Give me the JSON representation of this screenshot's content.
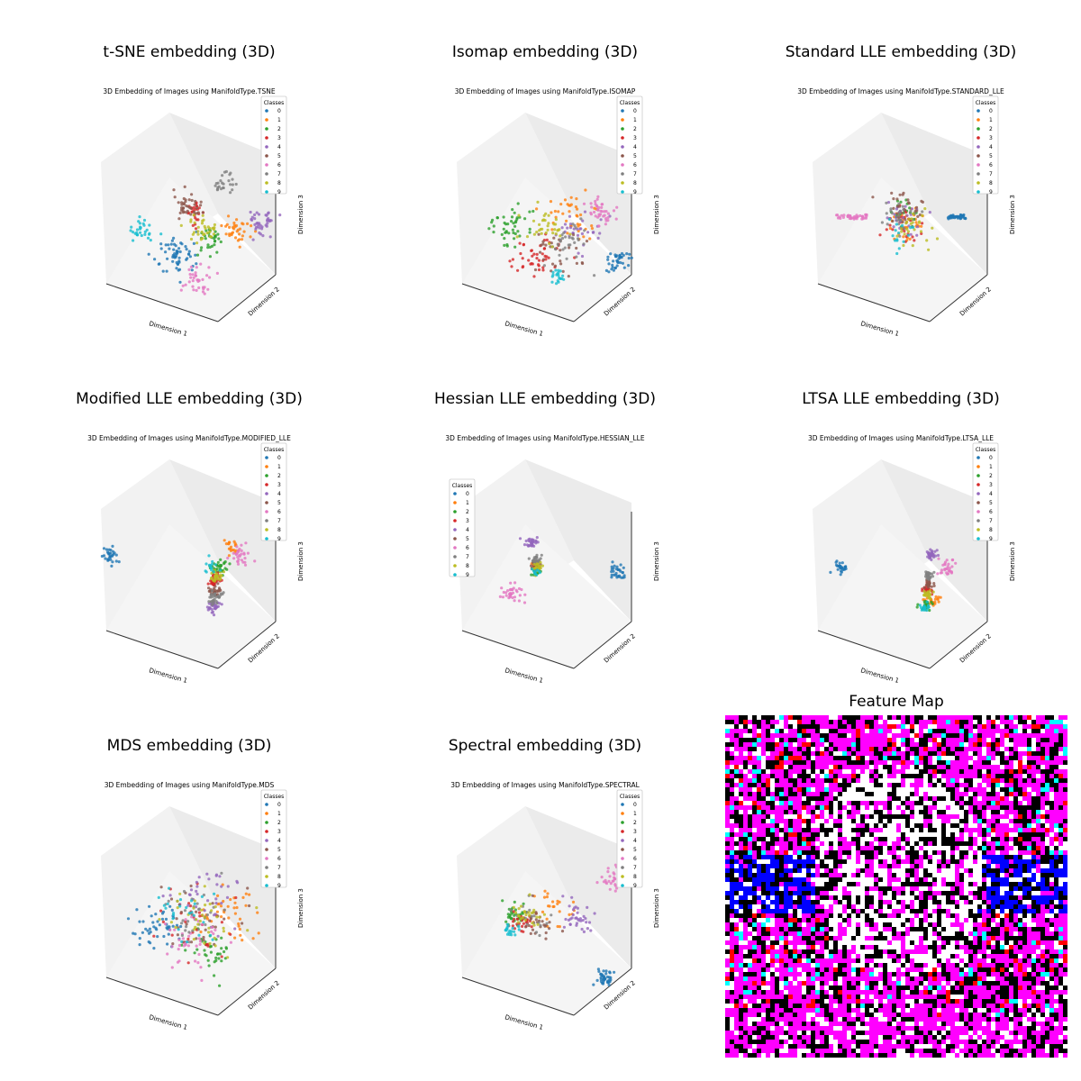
{
  "colors": {
    "0": "#1f77b4",
    "1": "#ff7f0e",
    "2": "#2ca02c",
    "3": "#d62728",
    "4": "#9467bd",
    "5": "#8c564b",
    "6": "#e377c2",
    "7": "#7f7f7f",
    "8": "#bcbd22",
    "9": "#17becf"
  },
  "legend_title": "Classes",
  "classes": [
    "0",
    "1",
    "2",
    "3",
    "4",
    "5",
    "6",
    "7",
    "8",
    "9"
  ],
  "axis_labels": {
    "x": "Dimension 1",
    "y": "Dimension 2",
    "z": "Dimension 3"
  },
  "chart_data": [
    {
      "type": "scatter",
      "title": "t-SNE embedding (3D)",
      "subtitle": "3D Embedding of Images using ManifoldType.TSNE",
      "legend_side": "right",
      "clusters": {
        "0": {
          "x": -0.15,
          "y": 0.1,
          "z": -0.35,
          "spread": 0.12,
          "n": 60
        },
        "1": {
          "x": 0.55,
          "y": 0.0,
          "z": -0.08,
          "spread": 0.09,
          "n": 35
        },
        "2": {
          "x": 0.25,
          "y": 0.0,
          "z": -0.2,
          "spread": 0.08,
          "n": 30
        },
        "3": {
          "x": 0.05,
          "y": 0.2,
          "z": 0.15,
          "spread": 0.07,
          "n": 25
        },
        "4": {
          "x": 0.85,
          "y": 0.0,
          "z": 0.02,
          "spread": 0.08,
          "n": 40
        },
        "5": {
          "x": -0.05,
          "y": 0.1,
          "z": 0.2,
          "spread": 0.09,
          "n": 40
        },
        "6": {
          "x": 0.1,
          "y": 0.0,
          "z": -0.65,
          "spread": 0.08,
          "n": 35
        },
        "7": {
          "x": 0.4,
          "y": 0.3,
          "z": 0.5,
          "spread": 0.07,
          "n": 25
        },
        "8": {
          "x": 0.15,
          "y": 0.1,
          "z": -0.05,
          "spread": 0.09,
          "n": 35
        },
        "9": {
          "x": -0.55,
          "y": 0.1,
          "z": -0.05,
          "spread": 0.07,
          "n": 30
        }
      }
    },
    {
      "type": "scatter",
      "title": "Isomap embedding (3D)",
      "subtitle": "3D Embedding of Images using ManifoldType.ISOMAP",
      "legend_side": "right",
      "clusters": {
        "0": {
          "x": 0.85,
          "y": 0.0,
          "z": -0.4,
          "spread": 0.08,
          "n": 40
        },
        "1": {
          "x": 0.3,
          "y": 0.0,
          "z": 0.1,
          "spread": 0.15,
          "n": 40
        },
        "2": {
          "x": -0.35,
          "y": 0.0,
          "z": 0.0,
          "spread": 0.14,
          "n": 45
        },
        "3": {
          "x": -0.1,
          "y": 0.0,
          "z": -0.35,
          "spread": 0.14,
          "n": 45
        },
        "4": {
          "x": 0.4,
          "y": 0.0,
          "z": -0.1,
          "spread": 0.15,
          "n": 30
        },
        "5": {
          "x": 0.15,
          "y": 0.0,
          "z": -0.3,
          "spread": 0.15,
          "n": 30
        },
        "6": {
          "x": 0.65,
          "y": 0.0,
          "z": 0.15,
          "spread": 0.09,
          "n": 40
        },
        "7": {
          "x": 0.3,
          "y": 0.0,
          "z": -0.2,
          "spread": 0.18,
          "n": 30
        },
        "8": {
          "x": 0.0,
          "y": 0.0,
          "z": 0.0,
          "spread": 0.12,
          "n": 35
        },
        "9": {
          "x": 0.15,
          "y": 0.0,
          "z": -0.6,
          "spread": 0.05,
          "n": 20
        }
      }
    },
    {
      "type": "scatter",
      "title": "Standard LLE embedding (3D)",
      "subtitle": "3D Embedding of Images using ManifoldType.STANDARD_LLE",
      "legend_side": "right",
      "clusters": {
        "0": {
          "x": 0.55,
          "y": 0.0,
          "z": 0.1,
          "spread": 0.02,
          "n": 45,
          "streak": [
            0.75,
            0.0
          ]
        },
        "1": {
          "x": 0.1,
          "y": 0.0,
          "z": 0.05,
          "spread": 0.1,
          "n": 30
        },
        "2": {
          "x": 0.05,
          "y": 0.0,
          "z": 0.15,
          "spread": 0.08,
          "n": 20
        },
        "3": {
          "x": 0.05,
          "y": 0.0,
          "z": 0.0,
          "spread": 0.1,
          "n": 25
        },
        "4": {
          "x": 0.0,
          "y": 0.0,
          "z": 0.1,
          "spread": 0.1,
          "n": 25
        },
        "5": {
          "x": 0.05,
          "y": 0.0,
          "z": 0.2,
          "spread": 0.12,
          "n": 30
        },
        "6": {
          "x": -0.4,
          "y": 0.0,
          "z": 0.1,
          "spread": 0.02,
          "n": 40,
          "streak": [
            -0.75,
            0.0
          ]
        },
        "7": {
          "x": 0.0,
          "y": 0.0,
          "z": 0.05,
          "spread": 0.15,
          "n": 25
        },
        "8": {
          "x": 0.1,
          "y": 0.0,
          "z": -0.05,
          "spread": 0.12,
          "n": 25
        },
        "9": {
          "x": -0.05,
          "y": 0.0,
          "z": -0.15,
          "spread": 0.1,
          "n": 15
        }
      }
    },
    {
      "type": "scatter",
      "title": "Modified LLE embedding (3D)",
      "subtitle": "3D Embedding of Images using ManifoldType.MODIFIED_LLE",
      "legend_side": "right",
      "clusters": {
        "0": {
          "x": -0.9,
          "y": 0.0,
          "z": 0.2,
          "spread": 0.05,
          "n": 30
        },
        "1": {
          "x": 0.5,
          "y": 0.0,
          "z": 0.3,
          "spread": 0.05,
          "n": 20
        },
        "2": {
          "x": 0.35,
          "y": 0.0,
          "z": 0.05,
          "spread": 0.05,
          "n": 35
        },
        "3": {
          "x": 0.3,
          "y": 0.0,
          "z": -0.1,
          "spread": 0.04,
          "n": 30
        },
        "4": {
          "x": 0.3,
          "y": 0.0,
          "z": -0.4,
          "spread": 0.04,
          "n": 30
        },
        "5": {
          "x": 0.3,
          "y": 0.0,
          "z": -0.2,
          "spread": 0.04,
          "n": 25
        },
        "6": {
          "x": 0.6,
          "y": 0.0,
          "z": 0.2,
          "spread": 0.06,
          "n": 30
        },
        "7": {
          "x": 0.3,
          "y": 0.0,
          "z": -0.3,
          "spread": 0.04,
          "n": 30
        },
        "8": {
          "x": 0.32,
          "y": 0.0,
          "z": -0.05,
          "spread": 0.04,
          "n": 25
        },
        "9": {
          "x": 0.25,
          "y": 0.0,
          "z": 0.05,
          "spread": 0.05,
          "n": 15
        }
      }
    },
    {
      "type": "scatter",
      "title": "Hessian LLE embedding (3D)",
      "subtitle": "3D Embedding of Images using ManifoldType.HESSIAN_LLE",
      "legend_side": "left",
      "clusters": {
        "0": {
          "x": 0.85,
          "y": 0.0,
          "z": 0.0,
          "spread": 0.05,
          "n": 30
        },
        "1": {
          "x": -0.1,
          "y": 0.0,
          "z": 0.05,
          "spread": 0.03,
          "n": 20
        },
        "2": {
          "x": -0.1,
          "y": 0.0,
          "z": 0.0,
          "spread": 0.03,
          "n": 20
        },
        "3": {
          "x": -0.12,
          "y": 0.0,
          "z": 0.05,
          "spread": 0.03,
          "n": 15
        },
        "4": {
          "x": -0.15,
          "y": 0.0,
          "z": 0.35,
          "spread": 0.04,
          "n": 35
        },
        "5": {
          "x": -0.12,
          "y": 0.0,
          "z": 0.1,
          "spread": 0.03,
          "n": 15
        },
        "6": {
          "x": -0.4,
          "y": 0.0,
          "z": -0.25,
          "spread": 0.06,
          "n": 35
        },
        "7": {
          "x": -0.1,
          "y": 0.0,
          "z": 0.15,
          "spread": 0.03,
          "n": 25
        },
        "8": {
          "x": -0.08,
          "y": 0.0,
          "z": 0.05,
          "spread": 0.03,
          "n": 20
        },
        "9": {
          "x": -0.1,
          "y": 0.0,
          "z": 0.0,
          "spread": 0.03,
          "n": 10
        }
      }
    },
    {
      "type": "scatter",
      "title": "LTSA LLE embedding (3D)",
      "subtitle": "3D Embedding of Images using ManifoldType.LTSA_LLE",
      "legend_side": "right",
      "clusters": {
        "0": {
          "x": -0.7,
          "y": 0.0,
          "z": 0.05,
          "spread": 0.04,
          "n": 30
        },
        "1": {
          "x": 0.35,
          "y": 0.0,
          "z": -0.35,
          "spread": 0.05,
          "n": 25
        },
        "2": {
          "x": 0.3,
          "y": 0.0,
          "z": -0.4,
          "spread": 0.04,
          "n": 25
        },
        "3": {
          "x": 0.32,
          "y": 0.0,
          "z": -0.2,
          "spread": 0.03,
          "n": 20
        },
        "4": {
          "x": 0.35,
          "y": 0.0,
          "z": 0.2,
          "spread": 0.03,
          "n": 35
        },
        "5": {
          "x": 0.32,
          "y": 0.0,
          "z": -0.15,
          "spread": 0.03,
          "n": 20
        },
        "6": {
          "x": 0.55,
          "y": 0.0,
          "z": 0.05,
          "spread": 0.05,
          "n": 30
        },
        "7": {
          "x": 0.33,
          "y": 0.0,
          "z": -0.05,
          "spread": 0.03,
          "n": 25
        },
        "8": {
          "x": 0.32,
          "y": 0.0,
          "z": -0.25,
          "spread": 0.03,
          "n": 20
        },
        "9": {
          "x": 0.28,
          "y": 0.0,
          "z": -0.4,
          "spread": 0.03,
          "n": 15
        }
      }
    },
    {
      "type": "scatter",
      "title": "MDS embedding (3D)",
      "subtitle": "3D Embedding of Images using ManifoldType.MDS",
      "legend_side": "right",
      "clusters": {
        "0": {
          "x": -0.35,
          "y": 0.0,
          "z": -0.1,
          "spread": 0.14,
          "n": 50
        },
        "1": {
          "x": 0.45,
          "y": 0.0,
          "z": 0.05,
          "spread": 0.18,
          "n": 40
        },
        "2": {
          "x": 0.25,
          "y": 0.0,
          "z": -0.4,
          "spread": 0.14,
          "n": 35
        },
        "3": {
          "x": 0.05,
          "y": 0.0,
          "z": -0.1,
          "spread": 0.22,
          "n": 30
        },
        "4": {
          "x": 0.25,
          "y": 0.0,
          "z": 0.25,
          "spread": 0.2,
          "n": 35
        },
        "5": {
          "x": 0.1,
          "y": 0.0,
          "z": 0.0,
          "spread": 0.22,
          "n": 30
        },
        "6": {
          "x": 0.0,
          "y": 0.0,
          "z": -0.2,
          "spread": 0.2,
          "n": 40
        },
        "7": {
          "x": 0.1,
          "y": 0.0,
          "z": 0.05,
          "spread": 0.22,
          "n": 30
        },
        "8": {
          "x": 0.15,
          "y": 0.0,
          "z": 0.0,
          "spread": 0.22,
          "n": 35
        },
        "9": {
          "x": -0.1,
          "y": 0.0,
          "z": 0.05,
          "spread": 0.2,
          "n": 25
        }
      }
    },
    {
      "type": "scatter",
      "title": "Spectral embedding (3D)",
      "subtitle": "3D Embedding of Images using ManifoldType.SPECTRAL",
      "legend_side": "right",
      "clusters": {
        "0": {
          "x": 0.7,
          "y": 0.0,
          "z": -0.7,
          "spread": 0.05,
          "n": 40
        },
        "1": {
          "x": 0.1,
          "y": 0.0,
          "z": 0.1,
          "spread": 0.12,
          "n": 25
        },
        "2": {
          "x": -0.35,
          "y": 0.0,
          "z": 0.05,
          "spread": 0.07,
          "n": 35
        },
        "3": {
          "x": -0.25,
          "y": 0.0,
          "z": -0.05,
          "spread": 0.08,
          "n": 25
        },
        "4": {
          "x": 0.35,
          "y": 0.0,
          "z": 0.0,
          "spread": 0.09,
          "n": 35
        },
        "5": {
          "x": -0.1,
          "y": 0.0,
          "z": -0.05,
          "spread": 0.1,
          "n": 25
        },
        "6": {
          "x": 0.8,
          "y": 0.0,
          "z": 0.45,
          "spread": 0.07,
          "n": 30
        },
        "7": {
          "x": -0.15,
          "y": 0.0,
          "z": 0.0,
          "spread": 0.1,
          "n": 20
        },
        "8": {
          "x": -0.2,
          "y": 0.0,
          "z": 0.05,
          "spread": 0.09,
          "n": 25
        },
        "9": {
          "x": -0.4,
          "y": 0.0,
          "z": -0.15,
          "spread": 0.05,
          "n": 20
        }
      }
    }
  ],
  "feature_map": {
    "title": "Feature Map",
    "colors": [
      "#ff00ff",
      "#000000",
      "#ffffff",
      "#0000ff",
      "#ff0000",
      "#00ffff"
    ]
  }
}
